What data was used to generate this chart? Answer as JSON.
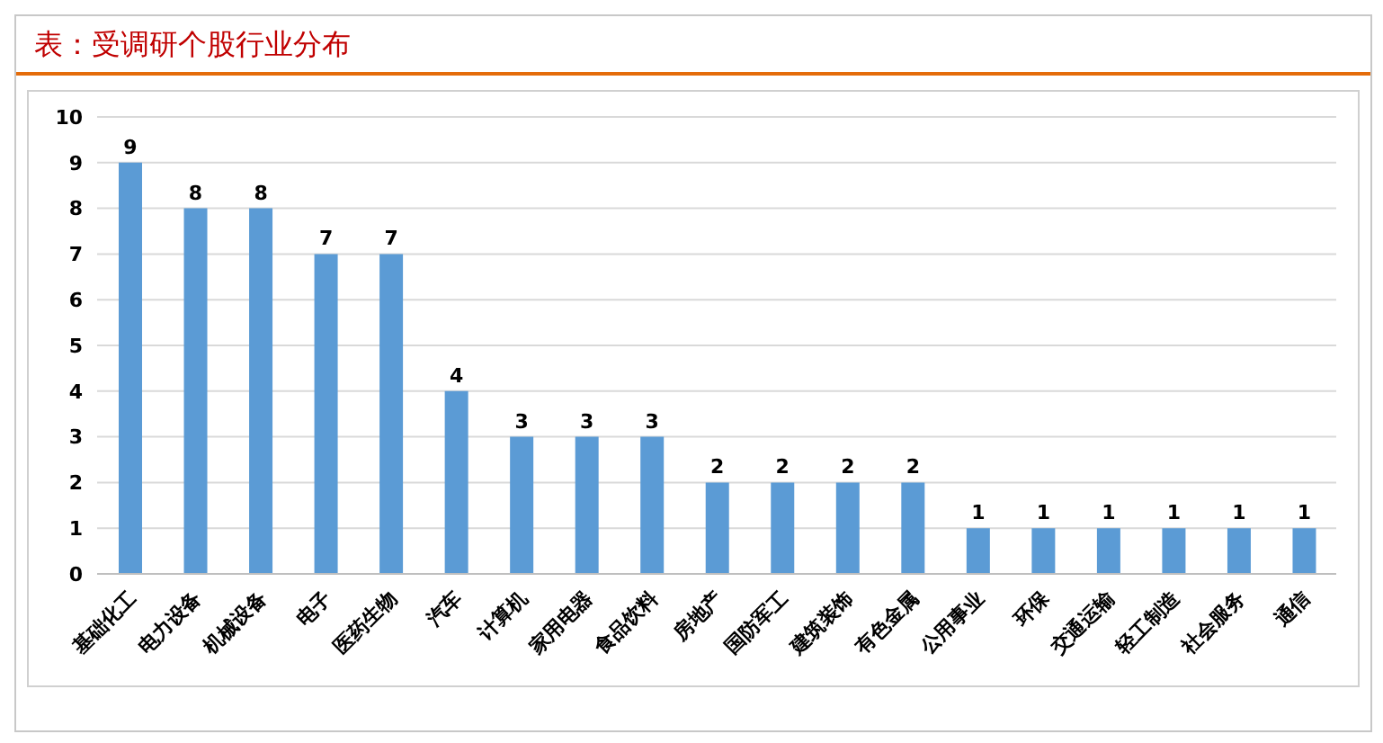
{
  "chart_data": {
    "type": "bar",
    "title": "表：受调研个股行业分布",
    "categories": [
      "基础化工",
      "电力设备",
      "机械设备",
      "电子",
      "医药生物",
      "汽车",
      "计算机",
      "家用电器",
      "食品饮料",
      "房地产",
      "国防军工",
      "建筑装饰",
      "有色金属",
      "公用事业",
      "环保",
      "交通运输",
      "轻工制造",
      "社会服务",
      "通信"
    ],
    "values": [
      9,
      8,
      8,
      7,
      7,
      4,
      3,
      3,
      3,
      2,
      2,
      2,
      2,
      1,
      1,
      1,
      1,
      1,
      1
    ],
    "color": "#5b9bd5",
    "ylim": [
      0,
      10
    ],
    "yticks": [
      0,
      1,
      2,
      3,
      4,
      5,
      6,
      7,
      8,
      9,
      10
    ],
    "grid": "y",
    "data_labels": true
  }
}
